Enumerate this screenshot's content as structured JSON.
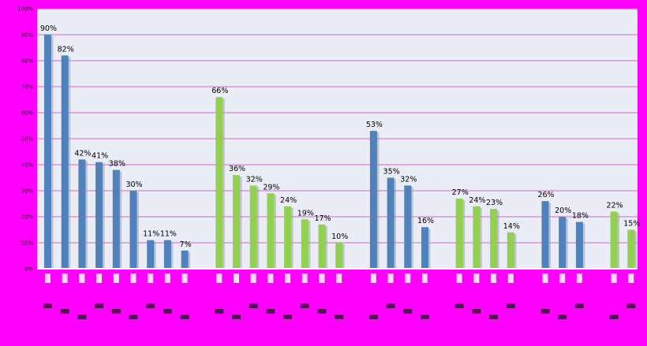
{
  "chart_data": {
    "type": "bar",
    "ylim": [
      0,
      100
    ],
    "yticks": [
      "0%",
      "10%",
      "20%",
      "30%",
      "40%",
      "50%",
      "60%",
      "70%",
      "80%",
      "90%",
      "100%"
    ],
    "grid": true,
    "legend": "none",
    "colors": {
      "blue": "#4f81bd",
      "green": "#92d050",
      "plot_bg": "#eaedf5",
      "gridline": "#cc33cc",
      "outer_bg": "#ff00ff"
    },
    "groups": [
      {
        "color": "blue",
        "values": [
          90,
          82,
          42,
          41,
          38,
          30,
          11,
          11,
          7
        ]
      },
      {
        "color": "green",
        "values": [
          66,
          36,
          32,
          29,
          24,
          19,
          17,
          10
        ]
      },
      {
        "color": "blue",
        "values": [
          53,
          35,
          32,
          16
        ]
      },
      {
        "color": "green",
        "values": [
          27,
          24,
          23,
          14
        ]
      },
      {
        "color": "blue",
        "values": [
          26,
          20,
          18
        ]
      },
      {
        "color": "green",
        "values": [
          22,
          15
        ]
      }
    ]
  }
}
